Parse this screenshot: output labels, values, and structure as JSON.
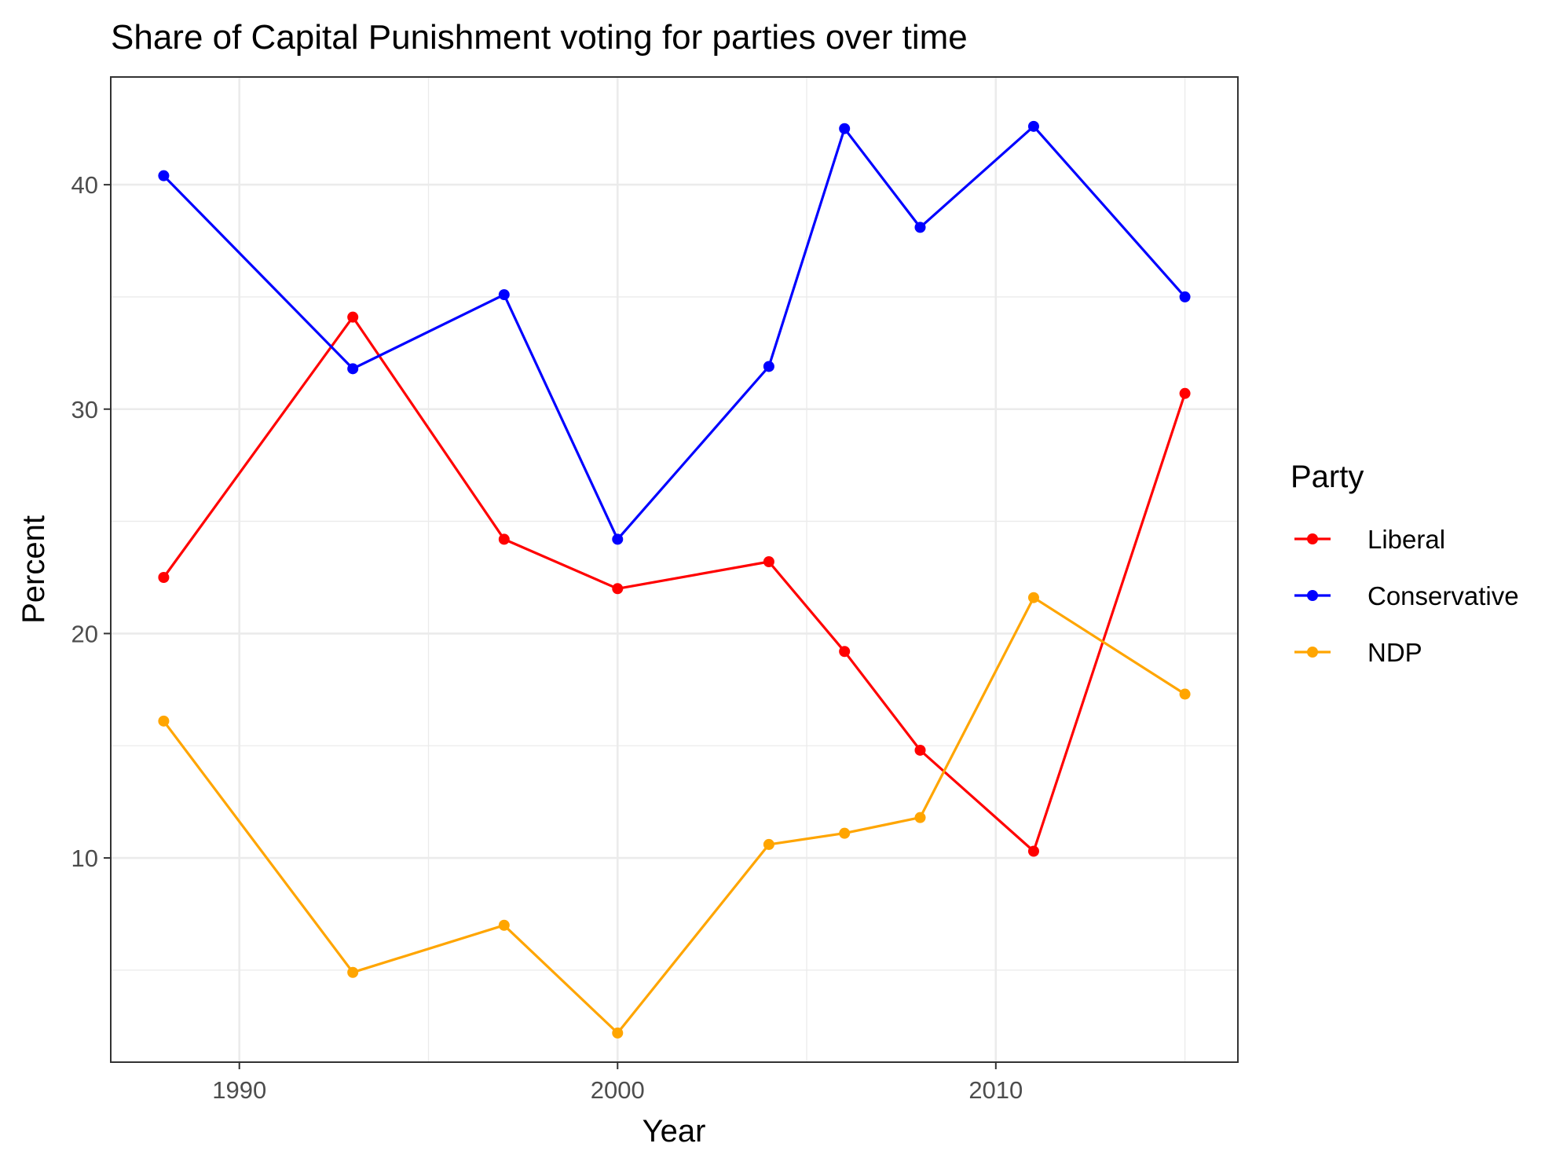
{
  "chart_data": {
    "type": "line",
    "title": "Share of Capital Punishment voting for parties over time",
    "xlabel": "Year",
    "ylabel": "Percent",
    "xlim": [
      1986.6,
      2016.4
    ],
    "ylim": [
      0.9,
      44.8
    ],
    "x_ticks": [
      1990,
      2000,
      2010
    ],
    "x_tick_labels": [
      "1990",
      "2000",
      "2010"
    ],
    "x_minor_ticks": [
      1985,
      1995,
      2005,
      2015
    ],
    "y_ticks": [
      10,
      20,
      30,
      40
    ],
    "y_tick_labels": [
      "10",
      "20",
      "30",
      "40"
    ],
    "y_minor_ticks": [
      5,
      15,
      25,
      35
    ],
    "grid": true,
    "legend": {
      "title": "Party",
      "position": "right"
    },
    "x": [
      1988,
      1993,
      1997,
      2000,
      2004,
      2006,
      2008,
      2011,
      2015
    ],
    "series": [
      {
        "name": "Liberal",
        "color": "#ff0000",
        "values": [
          22.5,
          34.1,
          24.2,
          22.0,
          23.2,
          19.2,
          14.8,
          10.3,
          30.7
        ]
      },
      {
        "name": "Conservative",
        "color": "#0000ff",
        "values": [
          40.4,
          31.8,
          35.1,
          24.2,
          31.9,
          42.5,
          38.1,
          42.6,
          35.0
        ]
      },
      {
        "name": "NDP",
        "color": "#ffa500",
        "values": [
          16.1,
          4.9,
          7.0,
          2.2,
          10.6,
          11.1,
          11.8,
          21.6,
          17.3
        ]
      }
    ]
  }
}
